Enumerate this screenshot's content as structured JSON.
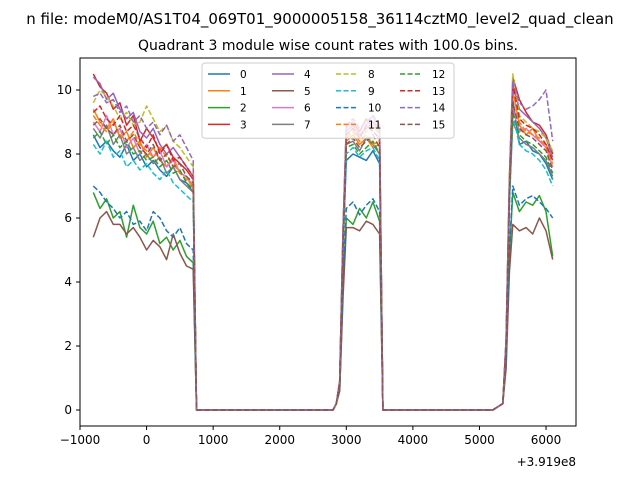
{
  "chart_data": {
    "type": "line",
    "suptitle": "n file: modeM0/AS1T04_069T01_9000005158_36114cztM0_level2_quad_clean",
    "title": "Quadrant 3 module wise count rates with 100.0s bins.",
    "xlabel": "",
    "ylabel": "",
    "x_offset_label": "+3.919e8",
    "xlim": [
      -1000,
      6450
    ],
    "ylim": [
      -0.5,
      11.0
    ],
    "xticks": [
      -1000,
      0,
      1000,
      2000,
      3000,
      4000,
      5000,
      6000
    ],
    "xtick_labels": [
      "−1000",
      "0",
      "1000",
      "2000",
      "3000",
      "4000",
      "5000",
      "6000"
    ],
    "yticks": [
      0,
      2,
      4,
      6,
      8,
      10
    ],
    "ytick_labels": [
      "0",
      "2",
      "4",
      "6",
      "8",
      "10"
    ],
    "grid": false,
    "legend_position": "top-center",
    "legend_columns": 4,
    "x": [
      -800,
      -700,
      -600,
      -500,
      -400,
      -300,
      -200,
      -100,
      0,
      100,
      200,
      300,
      400,
      500,
      600,
      700,
      750,
      800,
      900,
      1000,
      1200,
      1400,
      1600,
      1800,
      2000,
      2200,
      2400,
      2600,
      2800,
      2850,
      2900,
      2950,
      3000,
      3100,
      3200,
      3300,
      3400,
      3500,
      3550,
      3600,
      3700,
      3800,
      4000,
      4200,
      4400,
      4600,
      4800,
      5000,
      5200,
      5350,
      5400,
      5450,
      5500,
      5600,
      5700,
      5800,
      5900,
      6000,
      6100
    ],
    "series": [
      {
        "name": "0",
        "color": "#1f77b4",
        "dash": "solid",
        "values": [
          8.6,
          8.2,
          8.4,
          8.1,
          7.9,
          8.3,
          7.8,
          8.0,
          7.6,
          7.8,
          7.5,
          7.3,
          7.6,
          7.2,
          7.1,
          6.8,
          0.0,
          0.0,
          0,
          0,
          0,
          0,
          0,
          0,
          0,
          0,
          0,
          0,
          0,
          0.2,
          0.8,
          5.0,
          7.8,
          8.0,
          7.9,
          7.8,
          8.1,
          7.7,
          0.0,
          0.0,
          0,
          0,
          0,
          0,
          0,
          0,
          0,
          0,
          0,
          0.2,
          2.0,
          6.5,
          9.7,
          8.3,
          8.4,
          8.1,
          8.0,
          7.7,
          7.2
        ]
      },
      {
        "name": "1",
        "color": "#ff7f0e",
        "dash": "solid",
        "values": [
          9.4,
          9.0,
          8.8,
          9.1,
          8.5,
          8.7,
          8.2,
          8.4,
          7.9,
          8.2,
          7.8,
          7.6,
          7.9,
          7.4,
          7.3,
          6.9,
          0.0,
          0.0,
          0,
          0,
          0,
          0,
          0,
          0,
          0,
          0,
          0,
          0,
          0,
          0.2,
          0.8,
          5.2,
          8.4,
          8.6,
          8.3,
          8.5,
          8.2,
          8.3,
          0.0,
          0.0,
          0,
          0,
          0,
          0,
          0,
          0,
          0,
          0,
          0,
          0.2,
          2.0,
          6.9,
          10.0,
          8.9,
          8.6,
          8.8,
          8.4,
          8.3,
          7.8
        ]
      },
      {
        "name": "2",
        "color": "#2ca02c",
        "dash": "solid",
        "values": [
          6.8,
          6.3,
          6.6,
          6.0,
          6.2,
          5.4,
          6.4,
          5.7,
          5.5,
          5.9,
          5.2,
          5.4,
          5.0,
          5.3,
          4.8,
          4.6,
          0.0,
          0.0,
          0,
          0,
          0,
          0,
          0,
          0,
          0,
          0,
          0,
          0,
          0,
          0.2,
          0.6,
          3.8,
          6.0,
          5.8,
          6.3,
          6.0,
          6.5,
          5.9,
          0.0,
          0.0,
          0,
          0,
          0,
          0,
          0,
          0,
          0,
          0,
          0,
          0.2,
          1.5,
          4.8,
          6.8,
          6.2,
          6.5,
          6.4,
          6.7,
          6.2,
          4.8
        ]
      },
      {
        "name": "3",
        "color": "#d62728",
        "dash": "solid",
        "values": [
          10.5,
          10.1,
          9.9,
          9.4,
          9.6,
          8.9,
          9.2,
          8.4,
          8.8,
          8.5,
          8.1,
          8.3,
          7.9,
          7.7,
          7.5,
          7.2,
          0.0,
          0.0,
          0,
          0,
          0,
          0,
          0,
          0,
          0,
          0,
          0,
          0,
          0,
          0.2,
          0.9,
          5.6,
          8.9,
          9.0,
          8.7,
          9.1,
          8.8,
          8.9,
          0.0,
          0.0,
          0,
          0,
          0,
          0,
          0,
          0,
          0,
          0,
          0,
          0.2,
          2.2,
          7.2,
          10.4,
          9.7,
          9.3,
          9.0,
          8.9,
          8.6,
          8.0
        ]
      },
      {
        "name": "4",
        "color": "#9467bd",
        "dash": "solid",
        "values": [
          10.4,
          10.2,
          9.7,
          9.9,
          9.4,
          9.1,
          9.3,
          8.7,
          8.5,
          8.8,
          8.3,
          8.0,
          8.2,
          7.9,
          7.6,
          7.3,
          0.0,
          0.0,
          0,
          0,
          0,
          0,
          0,
          0,
          0,
          0,
          0,
          0,
          0,
          0.2,
          0.9,
          5.5,
          8.7,
          8.9,
          8.6,
          8.8,
          9.0,
          8.7,
          0.0,
          0.0,
          0,
          0,
          0,
          0,
          0,
          0,
          0,
          0,
          0,
          0.2,
          2.2,
          7.0,
          10.2,
          9.4,
          9.2,
          9.0,
          8.8,
          8.5,
          7.9
        ]
      },
      {
        "name": "5",
        "color": "#8c564b",
        "dash": "solid",
        "values": [
          5.4,
          6.0,
          6.2,
          5.8,
          5.8,
          5.5,
          5.7,
          5.4,
          5.0,
          5.3,
          5.1,
          4.7,
          5.5,
          4.9,
          4.5,
          4.4,
          0.0,
          0.0,
          0,
          0,
          0,
          0,
          0,
          0,
          0,
          0,
          0,
          0,
          0,
          0.2,
          0.6,
          3.5,
          5.7,
          5.7,
          5.6,
          5.9,
          5.8,
          5.5,
          0.0,
          0.0,
          0,
          0,
          0,
          0,
          0,
          0,
          0,
          0,
          0,
          0.2,
          1.3,
          4.3,
          5.8,
          5.6,
          5.7,
          5.5,
          6.0,
          5.6,
          4.7
        ]
      },
      {
        "name": "6",
        "color": "#e377c2",
        "dash": "solid",
        "values": [
          9.0,
          8.7,
          9.2,
          8.6,
          8.8,
          8.2,
          8.5,
          8.0,
          8.3,
          7.9,
          8.1,
          7.6,
          7.8,
          7.4,
          7.3,
          7.0,
          0.0,
          0.0,
          0,
          0,
          0,
          0,
          0,
          0,
          0,
          0,
          0,
          0,
          0,
          0.2,
          0.9,
          5.4,
          8.8,
          9.0,
          8.5,
          8.9,
          9.2,
          8.6,
          0.0,
          0.0,
          0,
          0,
          0,
          0,
          0,
          0,
          0,
          0,
          0,
          0.2,
          2.1,
          6.8,
          9.4,
          8.7,
          8.8,
          8.6,
          8.4,
          8.2,
          7.6
        ]
      },
      {
        "name": "7",
        "color": "#7f7f7f",
        "dash": "solid",
        "values": [
          8.8,
          8.5,
          8.9,
          8.3,
          8.6,
          8.0,
          8.2,
          7.8,
          8.0,
          7.7,
          7.9,
          7.4,
          7.6,
          7.2,
          7.0,
          6.8,
          0.0,
          0.0,
          0,
          0,
          0,
          0,
          0,
          0,
          0,
          0,
          0,
          0,
          0,
          0.2,
          0.8,
          5.2,
          8.3,
          8.4,
          8.1,
          8.5,
          8.3,
          8.0,
          0.0,
          0.0,
          0,
          0,
          0,
          0,
          0,
          0,
          0,
          0,
          0,
          0.2,
          2.0,
          6.6,
          9.0,
          8.5,
          8.3,
          8.2,
          8.0,
          7.8,
          7.3
        ]
      },
      {
        "name": "8",
        "color": "#bcbd22",
        "dash": "dashed",
        "values": [
          9.6,
          10.0,
          9.8,
          9.5,
          9.1,
          9.3,
          8.9,
          9.0,
          9.5,
          9.1,
          8.7,
          8.9,
          8.4,
          8.2,
          7.9,
          7.6,
          0.0,
          0.0,
          0,
          0,
          0,
          0,
          0,
          0,
          0,
          0,
          0,
          0,
          0,
          0.2,
          0.9,
          5.6,
          8.6,
          8.8,
          8.5,
          8.7,
          8.9,
          8.6,
          0.0,
          0.0,
          0,
          0,
          0,
          0,
          0,
          0,
          0,
          0,
          0,
          0.2,
          2.2,
          7.3,
          10.5,
          9.2,
          9.0,
          8.8,
          8.7,
          8.5,
          8.1
        ]
      },
      {
        "name": "9",
        "color": "#17becf",
        "dash": "dashed",
        "values": [
          8.3,
          8.0,
          8.4,
          7.9,
          8.1,
          7.6,
          7.8,
          7.5,
          7.7,
          7.4,
          7.2,
          7.5,
          7.1,
          6.9,
          6.7,
          6.5,
          0.0,
          0.0,
          0,
          0,
          0,
          0,
          0,
          0,
          0,
          0,
          0,
          0,
          0,
          0.2,
          0.8,
          5.0,
          8.0,
          8.2,
          7.9,
          8.1,
          8.2,
          7.8,
          0.0,
          0.0,
          0,
          0,
          0,
          0,
          0,
          0,
          0,
          0,
          0,
          0.2,
          1.9,
          6.4,
          9.2,
          8.3,
          8.1,
          8.0,
          7.8,
          7.5,
          7.0
        ]
      },
      {
        "name": "10",
        "color": "#1f77b4",
        "dash": "dashed",
        "values": [
          7.0,
          6.8,
          6.5,
          6.3,
          6.0,
          6.2,
          5.8,
          5.9,
          5.6,
          6.2,
          6.0,
          5.6,
          5.4,
          5.7,
          5.2,
          5.0,
          0.0,
          0.0,
          0,
          0,
          0,
          0,
          0,
          0,
          0,
          0,
          0,
          0,
          0,
          0.2,
          0.7,
          4.0,
          6.3,
          6.5,
          6.1,
          6.4,
          6.6,
          6.2,
          0.0,
          0.0,
          0,
          0,
          0,
          0,
          0,
          0,
          0,
          0,
          0,
          0.2,
          1.6,
          5.0,
          7.0,
          6.4,
          6.6,
          6.7,
          6.5,
          6.3,
          6.0
        ]
      },
      {
        "name": "11",
        "color": "#ff7f0e",
        "dash": "dashed",
        "values": [
          9.2,
          8.9,
          8.7,
          9.0,
          8.6,
          8.4,
          8.7,
          8.3,
          8.1,
          7.9,
          8.2,
          7.9,
          7.7,
          7.4,
          7.2,
          7.0,
          0.0,
          0.0,
          0,
          0,
          0,
          0,
          0,
          0,
          0,
          0,
          0,
          0,
          0,
          0.2,
          0.9,
          5.3,
          8.5,
          8.7,
          8.4,
          8.6,
          8.3,
          8.4,
          0.0,
          0.0,
          0,
          0,
          0,
          0,
          0,
          0,
          0,
          0,
          0,
          0.2,
          2.1,
          7.0,
          10.1,
          9.0,
          8.7,
          8.6,
          8.5,
          8.2,
          7.7
        ]
      },
      {
        "name": "12",
        "color": "#2ca02c",
        "dash": "dashed",
        "values": [
          8.5,
          8.7,
          8.3,
          8.6,
          8.2,
          8.4,
          8.0,
          8.1,
          7.8,
          7.9,
          7.6,
          7.8,
          7.4,
          7.5,
          7.1,
          6.9,
          0.0,
          0.0,
          0,
          0,
          0,
          0,
          0,
          0,
          0,
          0,
          0,
          0,
          0,
          0.2,
          0.8,
          5.1,
          8.2,
          8.3,
          8.0,
          8.2,
          8.4,
          8.0,
          0.0,
          0.0,
          0,
          0,
          0,
          0,
          0,
          0,
          0,
          0,
          0,
          0.2,
          2.0,
          6.6,
          9.3,
          8.6,
          8.4,
          8.3,
          8.1,
          7.9,
          7.4
        ]
      },
      {
        "name": "13",
        "color": "#d62728",
        "dash": "dashed",
        "values": [
          9.3,
          9.5,
          9.1,
          8.9,
          9.2,
          8.7,
          8.9,
          8.5,
          8.2,
          8.6,
          8.0,
          8.3,
          7.8,
          7.9,
          7.6,
          7.3,
          0.0,
          0.0,
          0,
          0,
          0,
          0,
          0,
          0,
          0,
          0,
          0,
          0,
          0,
          0.2,
          0.9,
          5.4,
          8.6,
          8.8,
          8.5,
          8.9,
          8.7,
          8.5,
          0.0,
          0.0,
          0,
          0,
          0,
          0,
          0,
          0,
          0,
          0,
          0,
          0.2,
          2.1,
          7.0,
          10.2,
          9.1,
          8.9,
          8.8,
          8.6,
          8.3,
          7.8
        ]
      },
      {
        "name": "14",
        "color": "#9467bd",
        "dash": "dashed",
        "values": [
          9.8,
          9.9,
          9.6,
          9.7,
          9.3,
          9.5,
          9.0,
          9.2,
          8.8,
          9.0,
          8.6,
          8.9,
          8.4,
          8.6,
          8.2,
          7.8,
          0.0,
          0.0,
          0,
          0,
          0,
          0,
          0,
          0,
          0,
          0,
          0,
          0,
          0,
          0.2,
          0.9,
          5.7,
          8.9,
          9.1,
          8.8,
          9.0,
          9.2,
          8.9,
          0.0,
          0.0,
          0,
          0,
          0,
          0,
          0,
          0,
          0,
          0,
          0,
          0.2,
          2.2,
          7.3,
          10.3,
          9.6,
          9.4,
          9.5,
          9.7,
          10.0,
          8.4
        ]
      },
      {
        "name": "15",
        "color": "#8c564b",
        "dash": "dashed",
        "values": [
          8.9,
          9.1,
          8.8,
          8.6,
          8.9,
          8.4,
          8.6,
          8.2,
          8.0,
          8.3,
          7.8,
          8.0,
          7.6,
          7.7,
          7.3,
          7.1,
          0.0,
          0.0,
          0,
          0,
          0,
          0,
          0,
          0,
          0,
          0,
          0,
          0,
          0,
          0.2,
          0.8,
          5.2,
          8.3,
          8.5,
          8.2,
          8.4,
          8.6,
          8.2,
          0.0,
          0.0,
          0,
          0,
          0,
          0,
          0,
          0,
          0,
          0,
          0,
          0.2,
          2.0,
          6.7,
          9.6,
          8.8,
          8.6,
          8.5,
          8.3,
          8.1,
          7.5
        ]
      }
    ]
  }
}
